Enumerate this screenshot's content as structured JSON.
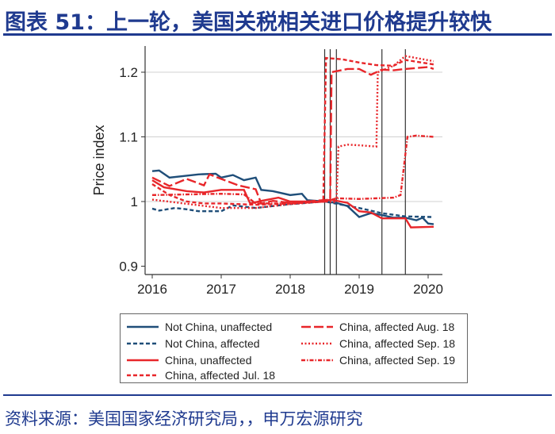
{
  "title": "图表 51：上一轮，美国关税相关进口价格提升较快",
  "source": "资料来源：美国国家经济研究局，，申万宏源研究",
  "chart_data": {
    "type": "line",
    "ylabel": "Price index",
    "xlabel": "",
    "xlim": [
      2015.9,
      2020.2
    ],
    "ylim": [
      0.885,
      1.235
    ],
    "xticks": [
      2016,
      2017,
      2018,
      2019,
      2020
    ],
    "xtick_labels": [
      "2016",
      "2017",
      "2018",
      "2019",
      "2020"
    ],
    "yticks": [
      0.9,
      1,
      1.1,
      1.2
    ],
    "ytick_labels": [
      "0.9",
      "1",
      "1.1",
      "1.2"
    ],
    "grid": "horizontal",
    "legend_placement": "bottom",
    "vlines": [
      2018.5,
      2018.58,
      2018.67,
      2019.33,
      2019.67
    ],
    "series": [
      {
        "name": "Not China, unaffected",
        "color": "#1f4e79",
        "style": "solid",
        "x": [
          2016,
          2016.1,
          2016.25,
          2016.5,
          2016.67,
          2016.92,
          2017,
          2017.17,
          2017.33,
          2017.5,
          2017.58,
          2017.75,
          2018,
          2018.17,
          2018.25,
          2018.5,
          2018.67,
          2018.83,
          2019,
          2019.17,
          2019.33,
          2019.5,
          2019.67,
          2019.83,
          2019.92,
          2020,
          2020.08
        ],
        "y": [
          1.047,
          1.048,
          1.037,
          1.04,
          1.042,
          1.043,
          1.037,
          1.041,
          1.033,
          1.037,
          1.018,
          1.016,
          1.01,
          1.012,
          1.002,
          1.0,
          0.998,
          0.993,
          0.976,
          0.982,
          0.979,
          0.975,
          0.975,
          0.971,
          0.975,
          0.966,
          0.965
        ]
      },
      {
        "name": "Not China, affected",
        "color": "#1f4e79",
        "style": "dash",
        "x": [
          2016,
          2016.1,
          2016.33,
          2016.5,
          2016.67,
          2017,
          2017.17,
          2017.5,
          2018,
          2018.5,
          2018.75,
          2019,
          2019.33,
          2019.67,
          2020.08
        ],
        "y": [
          0.989,
          0.986,
          0.99,
          0.988,
          0.985,
          0.985,
          0.994,
          0.99,
          0.996,
          1.0,
          0.995,
          0.99,
          0.982,
          0.977,
          0.976
        ]
      },
      {
        "name": "China, unaffected",
        "color": "#e8262a",
        "style": "solid",
        "x": [
          2016,
          2016.17,
          2016.5,
          2016.75,
          2017,
          2017.33,
          2017.42,
          2017.58,
          2017.83,
          2018,
          2018.5,
          2018.58,
          2018.83,
          2019,
          2019.17,
          2019.33,
          2019.67,
          2019.75,
          2020.08
        ],
        "y": [
          1.033,
          1.022,
          1.016,
          1.014,
          1.018,
          1.018,
          0.997,
          1.001,
          1.006,
          1.0,
          1.0,
          1.003,
          0.998,
          0.985,
          0.983,
          0.974,
          0.974,
          0.96,
          0.961
        ]
      },
      {
        "name": "China, affected Jul. 18",
        "color": "#e8262a",
        "style": "dash",
        "x": [
          2016,
          2016.25,
          2016.5,
          2016.75,
          2017,
          2017.5,
          2018,
          2018.48,
          2018.52,
          2018.75,
          2019,
          2019.25,
          2019.5,
          2019.67,
          2020.08
        ],
        "y": [
          1.027,
          1.01,
          1.0,
          0.997,
          0.997,
          0.995,
          0.997,
          1.0,
          1.222,
          1.22,
          1.215,
          1.211,
          1.21,
          1.219,
          1.212
        ]
      },
      {
        "name": "China, affected Aug. 18",
        "color": "#e8262a",
        "style": "longdash",
        "x": [
          2016,
          2016.25,
          2016.5,
          2016.75,
          2016.83,
          2017,
          2017.25,
          2017.5,
          2017.58,
          2017.75,
          2018,
          2018.58,
          2018.6,
          2018.83,
          2019,
          2019.17,
          2019.33,
          2019.5,
          2019.67,
          2020,
          2020.08
        ],
        "y": [
          1.037,
          1.024,
          1.035,
          1.025,
          1.042,
          1.035,
          1.025,
          1.019,
          0.997,
          1.001,
          0.998,
          1.003,
          1.2,
          1.205,
          1.205,
          1.196,
          1.204,
          1.203,
          1.205,
          1.208,
          1.205
        ]
      },
      {
        "name": "China, affected Sep. 18",
        "color": "#e8262a",
        "style": "dot",
        "x": [
          2016,
          2017,
          2017.5,
          2018,
          2018.5,
          2018.67,
          2018.7,
          2018.83,
          2019,
          2019.25,
          2019.27,
          2019.5,
          2019.67,
          2020.08
        ],
        "y": [
          1.003,
          0.99,
          0.99,
          0.996,
          1.0,
          0.999,
          1.085,
          1.088,
          1.087,
          1.085,
          1.2,
          1.21,
          1.225,
          1.217
        ]
      },
      {
        "name": "China, affected Sep. 19",
        "color": "#e8262a",
        "style": "dashdot",
        "x": [
          2016,
          2017,
          2017.33,
          2017.5,
          2018,
          2018.5,
          2018.67,
          2019,
          2019.5,
          2019.6,
          2019.7,
          2019.83,
          2020.08
        ],
        "y": [
          1.01,
          1.012,
          1.011,
          0.997,
          0.997,
          1.0,
          1.005,
          1.004,
          1.006,
          1.01,
          1.1,
          1.102,
          1.1
        ]
      }
    ]
  }
}
